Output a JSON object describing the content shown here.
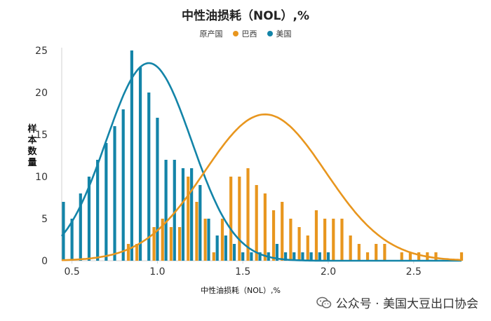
{
  "colors": {
    "brazil": "#E8961E",
    "usa": "#1384A8",
    "axis": "#d0d0d0",
    "text": "#333333"
  },
  "watermark": {
    "text": "公众号 · 美国大豆出口协会",
    "icon": "wechat-icon"
  },
  "chart_data": {
    "type": "bar",
    "title": "中性油损耗（NOL）,%",
    "xlabel": "中性油损耗（NOL）,%",
    "ylabel": "样本数量",
    "legend_title": "原产国",
    "legend_placement": "top-center",
    "xlim": [
      0.44,
      2.78
    ],
    "ylim": [
      0,
      25
    ],
    "xticks": [
      "0.5",
      "1.0",
      "1.5",
      "2.0",
      "2.5"
    ],
    "yticks": [
      "0",
      "5",
      "10",
      "15",
      "20",
      "25"
    ],
    "grid": false,
    "series": [
      {
        "name": "美国",
        "color_key": "usa",
        "bars": [
          [
            0.45,
            7
          ],
          [
            0.5,
            5
          ],
          [
            0.55,
            8
          ],
          [
            0.6,
            10
          ],
          [
            0.65,
            12
          ],
          [
            0.7,
            14
          ],
          [
            0.75,
            16
          ],
          [
            0.8,
            18
          ],
          [
            0.85,
            25
          ],
          [
            0.9,
            23
          ],
          [
            0.95,
            20
          ],
          [
            1.0,
            17
          ],
          [
            1.05,
            12
          ],
          [
            1.1,
            12
          ],
          [
            1.15,
            11
          ],
          [
            1.2,
            11
          ],
          [
            1.25,
            9
          ],
          [
            1.3,
            5
          ],
          [
            1.35,
            3
          ],
          [
            1.4,
            3
          ],
          [
            1.45,
            2
          ],
          [
            1.5,
            1
          ],
          [
            1.55,
            1
          ],
          [
            1.6,
            1
          ],
          [
            1.65,
            1
          ],
          [
            1.7,
            2
          ],
          [
            1.75,
            1
          ],
          [
            1.8,
            1
          ],
          [
            1.85,
            1
          ],
          [
            1.9,
            1
          ],
          [
            1.95,
            1
          ],
          [
            2.0,
            1
          ]
        ],
        "fit_curve": {
          "peak_x": 0.95,
          "peak_y": 23.5,
          "sigma": 0.25
        }
      },
      {
        "name": "巴西",
        "color_key": "brazil",
        "bars": [
          [
            0.83,
            2
          ],
          [
            0.88,
            2
          ],
          [
            0.98,
            4
          ],
          [
            1.03,
            5
          ],
          [
            1.08,
            4
          ],
          [
            1.13,
            4
          ],
          [
            1.18,
            10
          ],
          [
            1.23,
            7
          ],
          [
            1.28,
            5
          ],
          [
            1.33,
            1
          ],
          [
            1.38,
            5
          ],
          [
            1.43,
            10
          ],
          [
            1.48,
            10
          ],
          [
            1.53,
            11
          ],
          [
            1.58,
            9
          ],
          [
            1.63,
            8
          ],
          [
            1.68,
            6
          ],
          [
            1.73,
            7
          ],
          [
            1.78,
            5
          ],
          [
            1.83,
            4
          ],
          [
            1.88,
            3
          ],
          [
            1.93,
            6
          ],
          [
            1.98,
            5
          ],
          [
            2.03,
            5
          ],
          [
            2.08,
            5
          ],
          [
            2.13,
            3
          ],
          [
            2.18,
            2
          ],
          [
            2.23,
            1
          ],
          [
            2.28,
            2
          ],
          [
            2.33,
            2
          ],
          [
            2.43,
            1
          ],
          [
            2.48,
            1
          ],
          [
            2.53,
            1
          ],
          [
            2.58,
            1
          ],
          [
            2.63,
            1
          ],
          [
            2.78,
            1
          ]
        ],
        "fit_curve": {
          "peak_x": 1.63,
          "peak_y": 17.4,
          "sigma": 0.355
        }
      }
    ]
  }
}
